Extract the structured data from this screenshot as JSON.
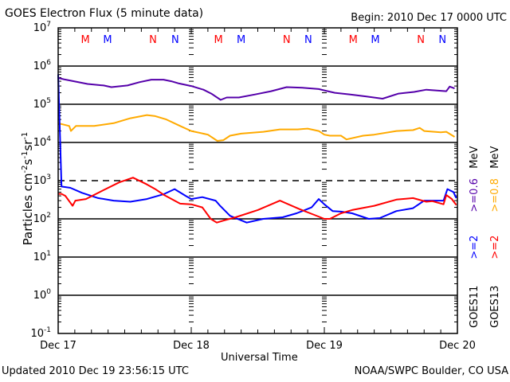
{
  "title": "GOES Electron Flux (5 minute data)",
  "begin": "Begin: 2010 Dec 17 0000 UTC",
  "updated": "Updated 2010 Dec 19 23:56:15 UTC",
  "credit": "NOAA/SWPC Boulder, CO USA",
  "legend": {
    "goes11": {
      "sat": "GOES11",
      "low": ">=2",
      "high": ">=0.6",
      "unit": "MeV",
      "low_color": "#0000ff",
      "high_color": "#5500aa"
    },
    "goes13": {
      "sat": "GOES13",
      "low": ">=2",
      "high": ">=0.8",
      "unit": "MeV",
      "low_color": "#ff0000",
      "high_color": "#ffaa00"
    }
  },
  "chart_data": {
    "type": "line",
    "title": "GOES Electron Flux (5 minute data)",
    "xlabel": "Universal Time",
    "ylabel": "Particles cm-2 s-1 sr-1",
    "yscale": "log",
    "ylim": [
      0.1,
      10000000
    ],
    "xlim_hours": [
      0,
      72
    ],
    "x_tick_labels": [
      "Dec 17",
      "Dec 18",
      "Dec 19",
      "Dec 20"
    ],
    "y_tick_labels": [
      {
        "base": "10",
        "exp": "7"
      },
      {
        "base": "10",
        "exp": "6"
      },
      {
        "base": "10",
        "exp": "5"
      },
      {
        "base": "10",
        "exp": "4"
      },
      {
        "base": "10",
        "exp": "3"
      },
      {
        "base": "10",
        "exp": "2"
      },
      {
        "base": "10",
        "exp": "1"
      },
      {
        "base": "10",
        "exp": "0"
      },
      {
        "base": "10",
        "exp": "-1"
      }
    ],
    "threshold_line": 1000,
    "grid": "horizontal at each decade",
    "markers": [
      {
        "label": "M",
        "hour": 4.9,
        "color": "#ff0000"
      },
      {
        "label": "M",
        "hour": 8.9,
        "color": "#0000ff"
      },
      {
        "label": "N",
        "hour": 17.1,
        "color": "#ff0000"
      },
      {
        "label": "N",
        "hour": 21.1,
        "color": "#0000ff"
      },
      {
        "label": "M",
        "hour": 28.9,
        "color": "#ff0000"
      },
      {
        "label": "M",
        "hour": 33.0,
        "color": "#0000ff"
      },
      {
        "label": "N",
        "hour": 41.2,
        "color": "#ff0000"
      },
      {
        "label": "N",
        "hour": 45.1,
        "color": "#0000ff"
      },
      {
        "label": "M",
        "hour": 53.2,
        "color": "#ff0000"
      },
      {
        "label": "M",
        "hour": 57.2,
        "color": "#0000ff"
      },
      {
        "label": "N",
        "hour": 65.4,
        "color": "#ff0000"
      },
      {
        "label": "N",
        "hour": 69.3,
        "color": "#0000ff"
      }
    ],
    "series": [
      {
        "name": "GOES11 >=0.6 MeV",
        "color": "#5500aa",
        "hours": [
          0,
          1,
          3.2,
          5.3,
          8.2,
          9.6,
          12.5,
          14.7,
          16.8,
          19.0,
          20.4,
          21.8,
          24,
          26.2,
          27.6,
          29.3,
          30.4,
          32.6,
          35.5,
          38.4,
          41.2,
          44.1,
          47.0,
          48,
          49.9,
          52.7,
          55.6,
          58.5,
          61.4,
          64.2,
          66.4,
          70.0,
          70.6,
          71.5
        ],
        "values": [
          490000,
          450000,
          390000,
          340000,
          310000,
          280000,
          310000,
          380000,
          440000,
          440000,
          400000,
          350000,
          300000,
          240000,
          190000,
          130000,
          150000,
          150000,
          180000,
          220000,
          280000,
          270000,
          250000,
          230000,
          200000,
          180000,
          160000,
          140000,
          190000,
          210000,
          240000,
          220000,
          290000,
          260000
        ]
      },
      {
        "name": "GOES13 >=0.8 MeV",
        "color": "#ffaa00",
        "hours": [
          0,
          2,
          2.3,
          3.2,
          6.5,
          10,
          13,
          16,
          17.5,
          19.5,
          22,
          24,
          27,
          28.7,
          29.8,
          31,
          33,
          37,
          40,
          43.2,
          45,
          47,
          48,
          49,
          51,
          52,
          55,
          57,
          61,
          64,
          65.2,
          66,
          69,
          70,
          71.5
        ],
        "values": [
          32000,
          27000,
          20000,
          27000,
          27000,
          32000,
          43000,
          52000,
          49000,
          40000,
          27000,
          20000,
          16000,
          11000,
          11500,
          15000,
          17000,
          19000,
          22000,
          22000,
          23000,
          20000,
          16000,
          15000,
          15000,
          12000,
          15000,
          16000,
          20000,
          21000,
          24000,
          20000,
          18500,
          19000,
          14000
        ]
      },
      {
        "name": "GOES11 >=2 MeV",
        "color": "#0000ff",
        "hours": [
          0,
          0.6,
          2.2,
          4.3,
          7.2,
          10,
          13,
          16,
          19,
          21,
          23,
          24,
          26,
          28.4,
          29.2,
          31,
          34,
          37,
          40.5,
          43,
          45.7,
          47,
          48,
          49.5,
          51,
          53,
          56,
          58,
          61,
          64,
          66,
          69.5,
          70.2,
          71.3,
          71.8
        ],
        "values": [
          600000,
          700,
          650,
          480,
          350,
          300,
          280,
          330,
          440,
          600,
          400,
          330,
          370,
          300,
          220,
          120,
          80,
          100,
          110,
          140,
          200,
          330,
          240,
          160,
          155,
          140,
          100,
          105,
          160,
          190,
          300,
          300,
          600,
          500,
          350
        ]
      },
      {
        "name": "GOES13 >=2 MeV",
        "color": "#ff0000",
        "hours": [
          0,
          0.6,
          1.3,
          2.6,
          3.1,
          5,
          8,
          11,
          13.5,
          16,
          17.5,
          19,
          22,
          24,
          26,
          27.5,
          28.6,
          29.8,
          32,
          36,
          40,
          43.5,
          46,
          48,
          49,
          51,
          53,
          57,
          61,
          64,
          66.4,
          67.5,
          69.5,
          70,
          71,
          71.8
        ],
        "values": [
          450,
          450,
          400,
          220,
          300,
          330,
          550,
          900,
          1200,
          800,
          600,
          430,
          250,
          240,
          200,
          100,
          80,
          90,
          110,
          170,
          300,
          180,
          130,
          100,
          100,
          140,
          170,
          220,
          320,
          350,
          280,
          290,
          240,
          420,
          330,
          230
        ]
      }
    ]
  }
}
